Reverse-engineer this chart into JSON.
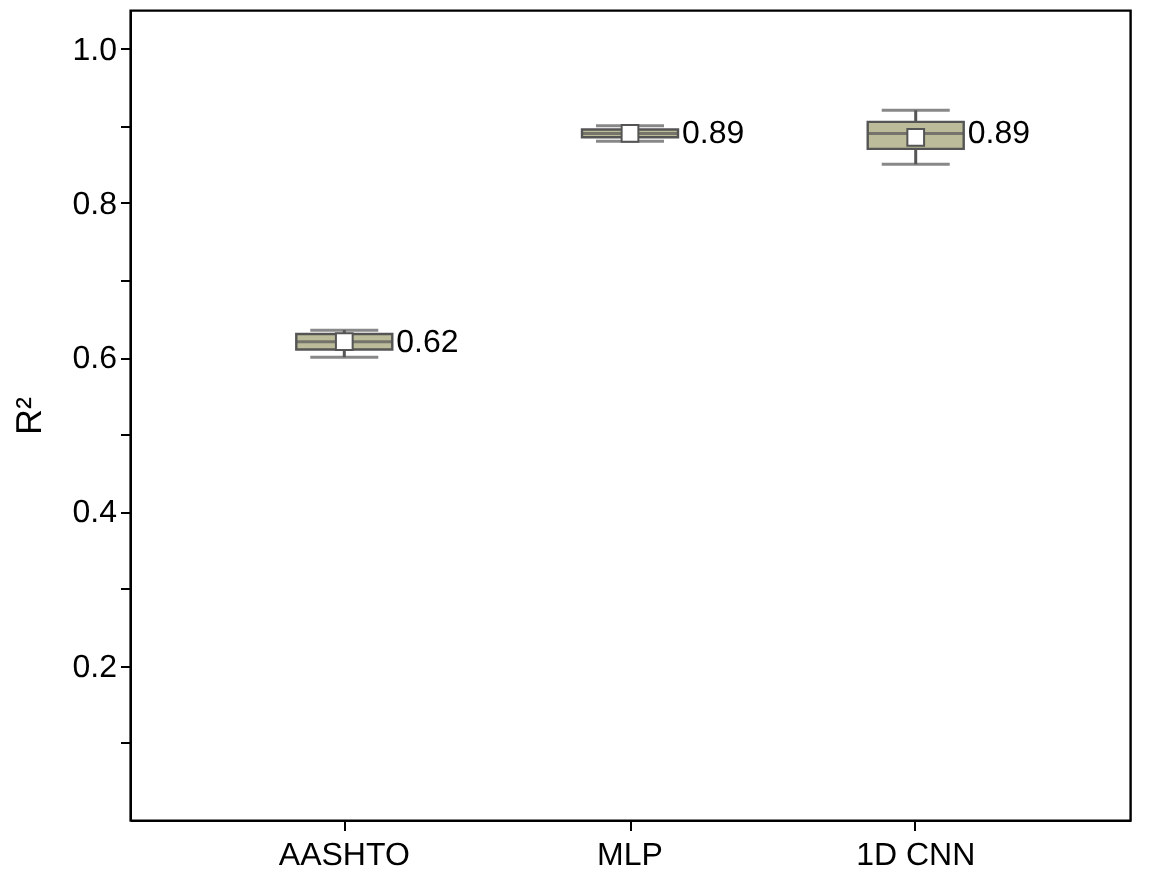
{
  "chart_data": {
    "type": "box",
    "ylabel": "R²",
    "categories": [
      "AASHTO",
      "MLP",
      "1D CNN"
    ],
    "boxes": [
      {
        "low": 0.6,
        "q1": 0.61,
        "median": 0.62,
        "q3": 0.63,
        "high": 0.635,
        "mean": 0.62
      },
      {
        "low": 0.88,
        "q1": 0.885,
        "median": 0.89,
        "q3": 0.895,
        "high": 0.9,
        "mean": 0.89
      },
      {
        "low": 0.85,
        "q1": 0.87,
        "median": 0.89,
        "q3": 0.905,
        "high": 0.92,
        "mean": 0.885
      }
    ],
    "color": "#bcbc9a",
    "ylim": [
      0,
      1.05
    ],
    "yticks": [
      {
        "value": 0.1,
        "label": null
      },
      0.2,
      {
        "value": 0.3,
        "label": null
      },
      0.4,
      {
        "value": 0.5,
        "label": null
      },
      0.6,
      {
        "value": 0.7,
        "label": null
      },
      0.8,
      {
        "value": 0.9,
        "label": null
      },
      {
        "value": 1.0,
        "label": "1.0"
      }
    ],
    "annotations": [
      {
        "text": "0.62",
        "x": "AASHTO",
        "y": 0.62
      },
      {
        "text": "0.89",
        "x": "MLP",
        "y": 0.89
      },
      {
        "text": "0.89",
        "x": "1D CNN",
        "y": 0.89
      }
    ],
    "grid": false
  }
}
